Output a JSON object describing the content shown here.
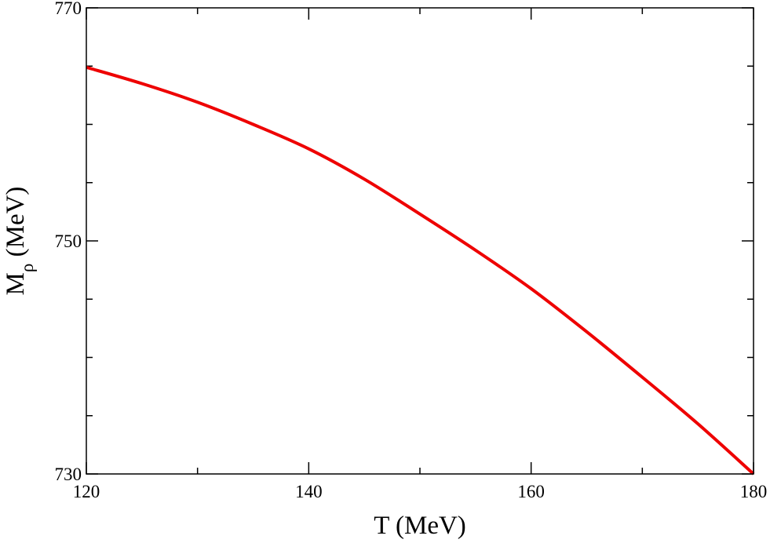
{
  "chart_data": {
    "type": "line",
    "title": "",
    "xlabel": "T (MeV)",
    "ylabel_main": "M",
    "ylabel_sub": "ρ",
    "ylabel_unit": " (MeV)",
    "xlim": [
      120,
      180
    ],
    "ylim": [
      730,
      770
    ],
    "x_ticks": [
      120,
      140,
      160,
      180
    ],
    "x_minor_ticks": [
      130,
      150,
      170
    ],
    "y_ticks": [
      730,
      750,
      770
    ],
    "y_minor_ticks": [
      735,
      740,
      745,
      755,
      760,
      765
    ],
    "grid": false,
    "series": [
      {
        "color": "#ee0000",
        "x": [
          120,
          125,
          130,
          135,
          140,
          145,
          150,
          155,
          160,
          165,
          170,
          175,
          180
        ],
        "y": [
          764.9,
          763.5,
          761.9,
          760.0,
          757.9,
          755.3,
          752.3,
          749.2,
          745.9,
          742.2,
          738.3,
          734.3,
          730.0
        ]
      }
    ]
  }
}
